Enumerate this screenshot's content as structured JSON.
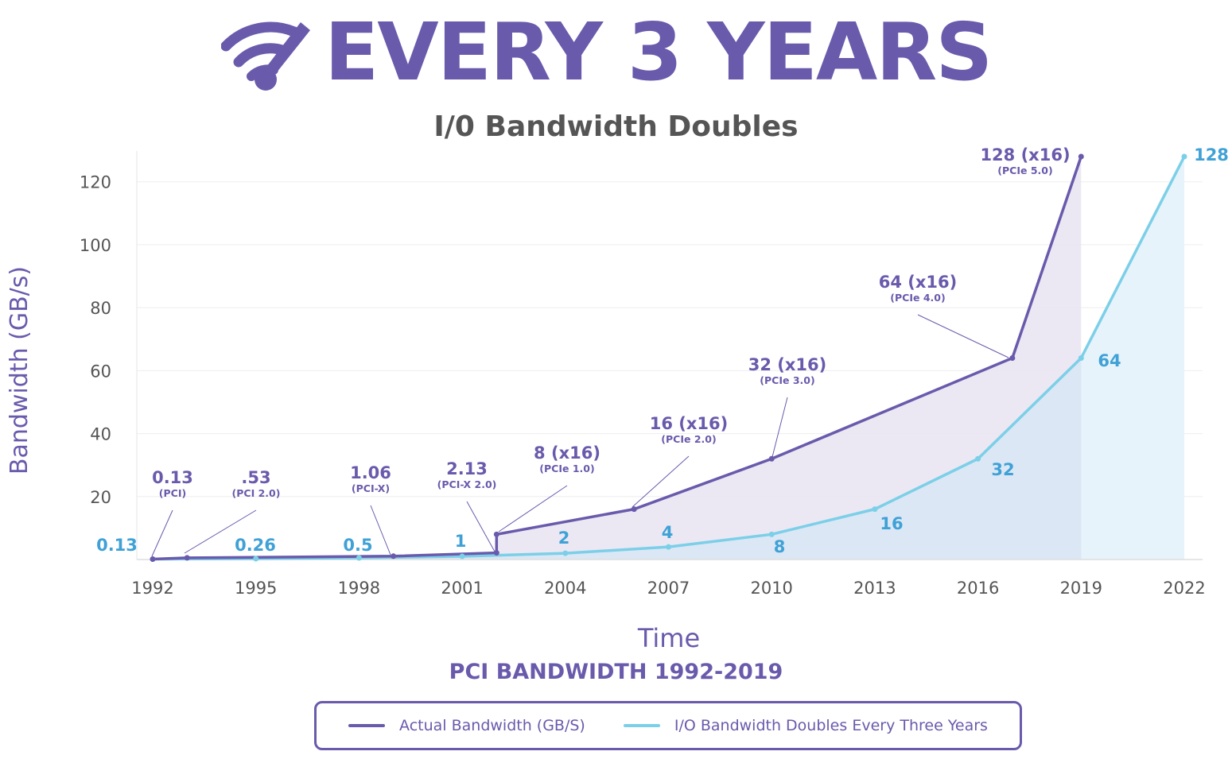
{
  "header": {
    "headline": "EVERY 3 YEARS",
    "subtitle": "I/0 Bandwidth Doubles"
  },
  "colors": {
    "actual": "#6a5aac",
    "doubling": "#7ccfe8",
    "doubling_label": "#3fa1d6",
    "actual_fill": "#e7e4f1",
    "doubling_fill": "#e6f3fa",
    "axis_text": "#555555",
    "grid": "#eeeeee"
  },
  "chart_data": {
    "type": "line",
    "title": "PCI BANDWIDTH 1992-2019",
    "xlabel": "Time",
    "ylabel": "Bandwidth (GB/s)",
    "x_ticks": [
      1992,
      1995,
      1998,
      2001,
      2004,
      2007,
      2010,
      2013,
      2016,
      2019,
      2022
    ],
    "y_ticks": [
      20,
      40,
      60,
      80,
      100,
      120
    ],
    "xlim": [
      1992,
      2022
    ],
    "ylim": [
      0,
      128
    ],
    "grid": true,
    "legend_position": "bottom",
    "series": [
      {
        "name": "Actual Bandwidth (GB/S)",
        "color": "#6a5aac",
        "points": [
          {
            "x": 1992,
            "y": 0.13
          },
          {
            "x": 1993,
            "y": 0.53
          },
          {
            "x": 1999,
            "y": 1.06
          },
          {
            "x": 2002,
            "y": 2.13
          },
          {
            "x": 2002,
            "y": 8
          },
          {
            "x": 2006,
            "y": 16
          },
          {
            "x": 2010,
            "y": 32
          },
          {
            "x": 2017,
            "y": 64
          },
          {
            "x": 2019,
            "y": 128
          }
        ]
      },
      {
        "name": "I/O Bandwidth Doubles Every Three Years",
        "color": "#7ccfe8",
        "points": [
          {
            "x": 1992,
            "y": 0.13
          },
          {
            "x": 1995,
            "y": 0.26
          },
          {
            "x": 1998,
            "y": 0.5
          },
          {
            "x": 2001,
            "y": 1
          },
          {
            "x": 2004,
            "y": 2
          },
          {
            "x": 2007,
            "y": 4
          },
          {
            "x": 2010,
            "y": 8
          },
          {
            "x": 2013,
            "y": 16
          },
          {
            "x": 2016,
            "y": 32
          },
          {
            "x": 2019,
            "y": 64
          },
          {
            "x": 2022,
            "y": 128
          }
        ]
      }
    ],
    "annotations_actual": [
      {
        "value": "0.13",
        "sub": "(PCI)",
        "x": 1992,
        "y": 0.13
      },
      {
        "value": ".53",
        "sub": "(PCI 2.0)",
        "x": 1993,
        "y": 0.53
      },
      {
        "value": "1.06",
        "sub": "(PCI-X)",
        "x": 1999,
        "y": 1.06
      },
      {
        "value": "2.13",
        "sub": "(PCI-X 2.0)",
        "x": 2002,
        "y": 2.13
      },
      {
        "value": "8 (x16)",
        "sub": "(PCIe 1.0)",
        "x": 2002,
        "y": 8
      },
      {
        "value": "16 (x16)",
        "sub": "(PCIe 2.0)",
        "x": 2006,
        "y": 16
      },
      {
        "value": "32 (x16)",
        "sub": "(PCIe 3.0)",
        "x": 2010,
        "y": 32
      },
      {
        "value": "64 (x16)",
        "sub": "(PCIe 4.0)",
        "x": 2017,
        "y": 64
      },
      {
        "value": "128 (x16)",
        "sub": "(PCIe 5.0)",
        "x": 2019,
        "y": 128
      }
    ],
    "annotations_doubling": [
      {
        "value": "0.13",
        "x": 1992,
        "y": 0.13
      },
      {
        "value": "0.26",
        "x": 1995,
        "y": 0.26
      },
      {
        "value": "0.5",
        "x": 1998,
        "y": 0.5
      },
      {
        "value": "1",
        "x": 2001,
        "y": 1
      },
      {
        "value": "2",
        "x": 2004,
        "y": 2
      },
      {
        "value": "4",
        "x": 2007,
        "y": 4
      },
      {
        "value": "8",
        "x": 2010,
        "y": 8
      },
      {
        "value": "16",
        "x": 2013,
        "y": 16
      },
      {
        "value": "32",
        "x": 2016,
        "y": 32
      },
      {
        "value": "64",
        "x": 2019,
        "y": 64
      },
      {
        "value": "128",
        "x": 2022,
        "y": 128
      }
    ]
  }
}
